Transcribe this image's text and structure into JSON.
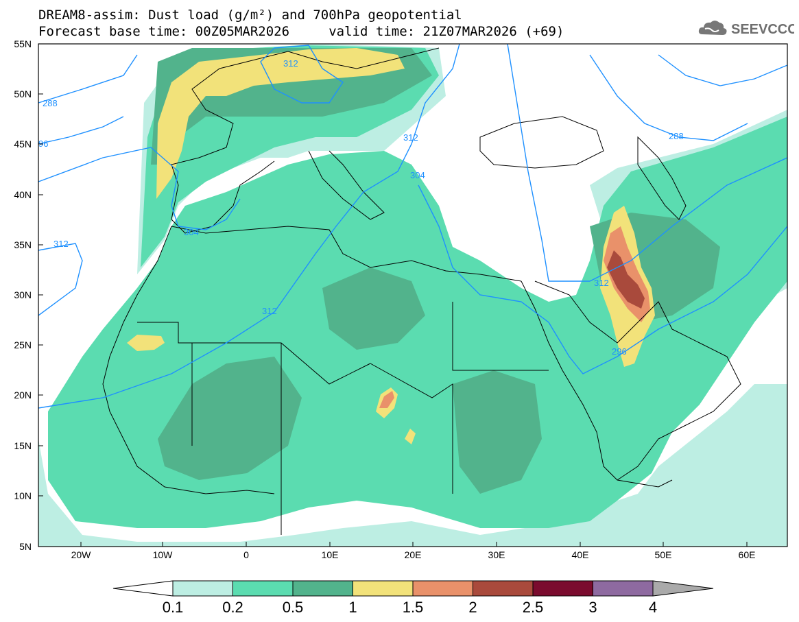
{
  "title": {
    "line1": "DREAM8-assim: Dust load (g/m²) and 700hPa geopotential",
    "line2": "Forecast base time: 00Z05MAR2026     valid time: 21Z07MAR2026 (+69)"
  },
  "logo": {
    "text": "SEEVCCC",
    "icon": "cloud-icon"
  },
  "axes": {
    "lon_ticks": [
      "20W",
      "10W",
      "0",
      "10E",
      "20E",
      "30E",
      "40E",
      "50E",
      "60E"
    ],
    "lat_ticks": [
      "55N",
      "50N",
      "45N",
      "40N",
      "35N",
      "30N",
      "25N",
      "20N",
      "15N",
      "10N",
      "5N"
    ]
  },
  "contour_labels": [
    "288",
    "96",
    "304",
    "312",
    "312",
    "312",
    "312",
    "304",
    "312",
    "296",
    "288"
  ],
  "colorbar": {
    "labels": [
      "0.1",
      "0.2",
      "0.5",
      "1",
      "1.5",
      "2",
      "2.5",
      "3",
      "4"
    ],
    "colors": [
      "#ffffff",
      "#bdeee3",
      "#5bdcb0",
      "#52b38c",
      "#f2e27a",
      "#e9916a",
      "#a94a3c",
      "#7a0b2e",
      "#8e6aa0",
      "#aaaaaa"
    ]
  },
  "colors": {
    "low": "#bdeee3",
    "mid": "#5bdcb0",
    "dark": "#52b38c",
    "yellow": "#f2e27a",
    "orange": "#e9916a",
    "brown": "#a94a3c",
    "contour": "#1e90ff"
  }
}
